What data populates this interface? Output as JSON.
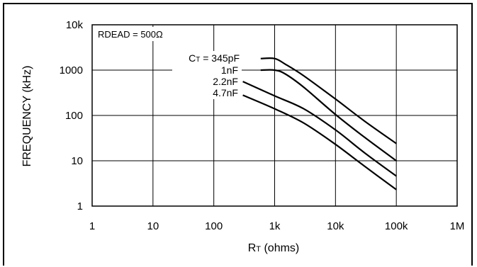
{
  "chart_data": {
    "type": "line",
    "xscale": "log",
    "yscale": "log",
    "xlabel": "RT (ohms)",
    "xlabel_main": "R",
    "xlabel_sub": "T",
    "xlabel_rest": " (ohms)",
    "ylabel": "FREQUENCY (kHz)",
    "xlim": [
      1,
      1000000
    ],
    "ylim": [
      1,
      10000
    ],
    "x_ticks": [
      1,
      10,
      100,
      1000,
      10000,
      100000,
      1000000
    ],
    "x_tick_labels": [
      "1",
      "10",
      "100",
      "1k",
      "10k",
      "100k",
      "1M"
    ],
    "y_ticks": [
      1,
      10,
      100,
      1000,
      10000
    ],
    "y_tick_labels": [
      "1",
      "10",
      "100",
      "1000",
      "10k"
    ],
    "grid": true,
    "annotation": "RDEAD = 500Ω",
    "series": [
      {
        "name": "CT = 345pF",
        "label_main": "C",
        "label_sub": "T",
        "label_rest": " = 345pF",
        "points": [
          [
            590,
            1800
          ],
          [
            1000,
            1800
          ],
          [
            1500,
            1350
          ],
          [
            3000,
            750
          ],
          [
            10000,
            230
          ],
          [
            30000,
            75
          ],
          [
            100000,
            24
          ]
        ]
      },
      {
        "name": "1nF",
        "points": [
          [
            590,
            1000
          ],
          [
            1000,
            1000
          ],
          [
            1500,
            820
          ],
          [
            3000,
            420
          ],
          [
            10000,
            105
          ],
          [
            30000,
            33
          ],
          [
            100000,
            10
          ]
        ]
      },
      {
        "name": "2.2nF",
        "points": [
          [
            300,
            560
          ],
          [
            1000,
            270
          ],
          [
            3000,
            140
          ],
          [
            10000,
            48
          ],
          [
            30000,
            15
          ],
          [
            100000,
            4.6
          ]
        ]
      },
      {
        "name": "4.7nF",
        "points": [
          [
            300,
            280
          ],
          [
            1000,
            140
          ],
          [
            3000,
            68
          ],
          [
            10000,
            23
          ],
          [
            30000,
            7.6
          ],
          [
            100000,
            2.3
          ]
        ]
      }
    ]
  }
}
